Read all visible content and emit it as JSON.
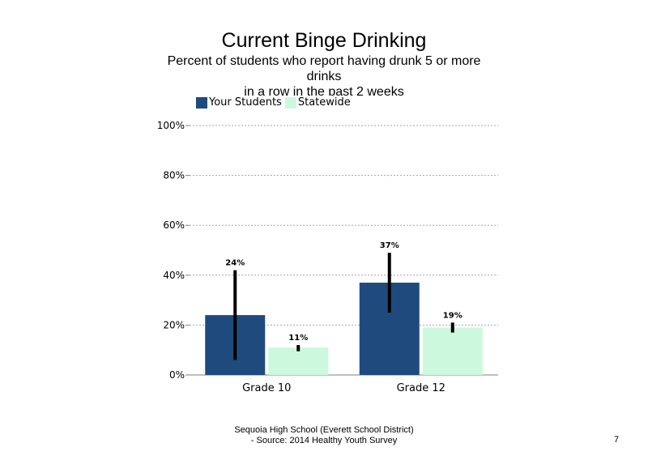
{
  "chart_data": {
    "type": "bar",
    "title": "Current Binge Drinking",
    "subtitle_lines": [
      "Percent of students  who report having drunk 5 or more drinks",
      "in a row in the past 2 weeks"
    ],
    "categories": [
      "Grade 10",
      "Grade 12"
    ],
    "series": [
      {
        "name": "Your Students",
        "color": "#1f4a7e",
        "values": [
          24,
          37
        ],
        "error_low": [
          6,
          25
        ],
        "error_high": [
          42,
          49
        ],
        "labels": [
          "24%",
          "37%"
        ]
      },
      {
        "name": "Statewide",
        "color": "#ccf9de",
        "values": [
          11,
          19
        ],
        "error_low": [
          9.5,
          17
        ],
        "error_high": [
          12,
          21
        ],
        "labels": [
          "11%",
          "19%"
        ]
      }
    ],
    "y_ticks": [
      0,
      20,
      40,
      60,
      80,
      100
    ],
    "y_tick_labels": [
      "0%",
      "20%",
      "40%",
      "60%",
      "80%",
      "100%"
    ],
    "ylim": [
      0,
      100
    ],
    "grid": true,
    "legend_position": "top-left"
  },
  "footer": {
    "line1": "Sequoia High School (Everett School District)",
    "line2": "- Source: 2014 Healthy  Youth Survey"
  },
  "page_number": "7"
}
